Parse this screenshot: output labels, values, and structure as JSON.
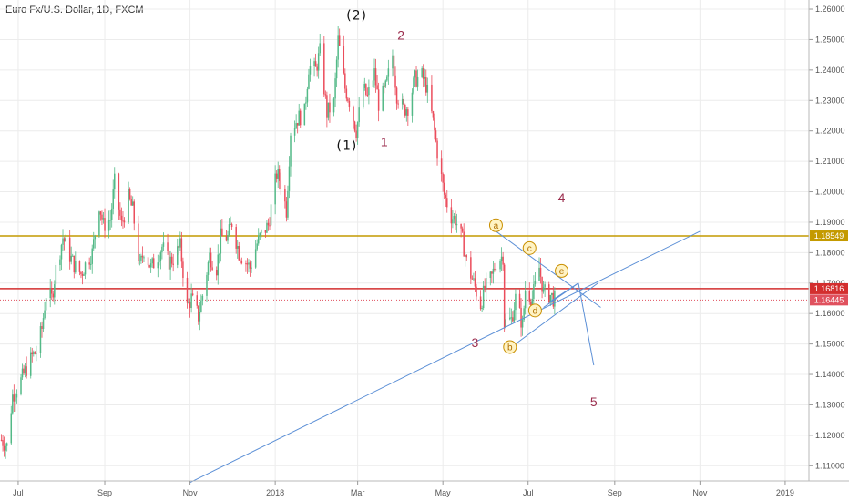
{
  "title": "Euro Fx/U.S. Dollar, 1D, FXCM",
  "colors": {
    "up": "#53b987",
    "down": "#eb4d5c",
    "hline_gold": "#c49a00",
    "hline_red": "#d32f2f",
    "last_dotted": "#e0515e",
    "trend_blue": "#5b8fd6",
    "wave_red": "#9c2f4f",
    "circle_fill": "#fff3c4",
    "circle_stroke": "#c98f00",
    "grid": "#ececec",
    "axis_text": "#555555"
  },
  "chart_data": {
    "type": "candlestick",
    "symbol": "Euro Fx/U.S. Dollar",
    "interval": "1D",
    "source": "FXCM",
    "ylim": [
      1.105,
      1.263
    ],
    "y_ticks": [
      "1.11000",
      "1.12000",
      "1.13000",
      "1.14000",
      "1.15000",
      "1.16000",
      "1.17000",
      "1.18000",
      "1.19000",
      "1.20000",
      "1.21000",
      "1.22000",
      "1.23000",
      "1.24000",
      "1.25000",
      "1.26000"
    ],
    "x_range": [
      "2017-06-18",
      "2019-01-18"
    ],
    "x_ticks": [
      {
        "label": "Jul",
        "date": "2017-07-01"
      },
      {
        "label": "Sep",
        "date": "2017-09-01"
      },
      {
        "label": "Nov",
        "date": "2017-11-01"
      },
      {
        "label": "2018",
        "date": "2018-01-01"
      },
      {
        "label": "Mar",
        "date": "2018-03-01"
      },
      {
        "label": "May",
        "date": "2018-05-01"
      },
      {
        "label": "Jul",
        "date": "2018-07-01"
      },
      {
        "label": "Sep",
        "date": "2018-09-01"
      },
      {
        "label": "Nov",
        "date": "2018-11-01"
      },
      {
        "label": "2019",
        "date": "2019-01-01"
      }
    ],
    "closes": [
      [
        "2017-06-19",
        1.1185
      ],
      [
        "2017-06-23",
        1.1165
      ],
      [
        "2017-06-27",
        1.133
      ],
      [
        "2017-07-03",
        1.138
      ],
      [
        "2017-07-07",
        1.142
      ],
      [
        "2017-07-11",
        1.146
      ],
      [
        "2017-07-14",
        1.1475
      ],
      [
        "2017-07-18",
        1.155
      ],
      [
        "2017-07-21",
        1.1665
      ],
      [
        "2017-07-25",
        1.165
      ],
      [
        "2017-07-28",
        1.1745
      ],
      [
        "2017-08-02",
        1.185
      ],
      [
        "2017-08-07",
        1.179
      ],
      [
        "2017-08-10",
        1.176
      ],
      [
        "2017-08-15",
        1.173
      ],
      [
        "2017-08-18",
        1.176
      ],
      [
        "2017-08-23",
        1.18
      ],
      [
        "2017-08-28",
        1.196
      ],
      [
        "2017-08-31",
        1.189
      ],
      [
        "2017-09-05",
        1.191
      ],
      [
        "2017-09-08",
        1.203
      ],
      [
        "2017-09-13",
        1.189
      ],
      [
        "2017-09-18",
        1.198
      ],
      [
        "2017-09-21",
        1.194
      ],
      [
        "2017-09-26",
        1.175
      ],
      [
        "2017-09-29",
        1.181
      ],
      [
        "2017-10-04",
        1.175
      ],
      [
        "2017-10-09",
        1.179
      ],
      [
        "2017-10-12",
        1.182
      ],
      [
        "2017-10-17",
        1.177
      ],
      [
        "2017-10-20",
        1.178
      ],
      [
        "2017-10-25",
        1.182
      ],
      [
        "2017-10-30",
        1.162
      ],
      [
        "2017-11-02",
        1.165
      ],
      [
        "2017-11-07",
        1.159
      ],
      [
        "2017-11-10",
        1.166
      ],
      [
        "2017-11-15",
        1.179
      ],
      [
        "2017-11-20",
        1.175
      ],
      [
        "2017-11-23",
        1.185
      ],
      [
        "2017-11-28",
        1.185
      ],
      [
        "2017-12-01",
        1.19
      ],
      [
        "2017-12-06",
        1.18
      ],
      [
        "2017-12-11",
        1.177
      ],
      [
        "2017-12-14",
        1.175
      ],
      [
        "2017-12-19",
        1.183
      ],
      [
        "2017-12-22",
        1.186
      ],
      [
        "2017-12-27",
        1.189
      ],
      [
        "2018-01-02",
        1.206
      ],
      [
        "2018-01-05",
        1.203
      ],
      [
        "2018-01-09",
        1.194
      ],
      [
        "2018-01-12",
        1.22
      ],
      [
        "2018-01-17",
        1.224
      ],
      [
        "2018-01-22",
        1.226
      ],
      [
        "2018-01-25",
        1.241
      ],
      [
        "2018-01-30",
        1.24
      ],
      [
        "2018-02-02",
        1.246
      ],
      [
        "2018-02-07",
        1.226
      ],
      [
        "2018-02-12",
        1.229
      ],
      [
        "2018-02-15",
        1.25
      ],
      [
        "2018-02-20",
        1.234
      ],
      [
        "2018-02-23",
        1.23
      ],
      [
        "2018-02-28",
        1.22
      ],
      [
        "2018-03-05",
        1.234
      ],
      [
        "2018-03-08",
        1.231
      ],
      [
        "2018-03-13",
        1.239
      ],
      [
        "2018-03-16",
        1.229
      ],
      [
        "2018-03-21",
        1.234
      ],
      [
        "2018-03-26",
        1.245
      ],
      [
        "2018-03-29",
        1.232
      ],
      [
        "2018-04-03",
        1.227
      ],
      [
        "2018-04-06",
        1.228
      ],
      [
        "2018-04-11",
        1.237
      ],
      [
        "2018-04-16",
        1.238
      ],
      [
        "2018-04-19",
        1.235
      ],
      [
        "2018-04-24",
        1.223
      ],
      [
        "2018-04-27",
        1.213
      ],
      [
        "2018-05-02",
        1.199
      ],
      [
        "2018-05-07",
        1.192
      ],
      [
        "2018-05-10",
        1.191
      ],
      [
        "2018-05-15",
        1.184
      ],
      [
        "2018-05-18",
        1.177
      ],
      [
        "2018-05-23",
        1.17
      ],
      [
        "2018-05-28",
        1.163
      ],
      [
        "2018-05-31",
        1.168
      ],
      [
        "2018-06-05",
        1.172
      ],
      [
        "2018-06-08",
        1.177
      ],
      [
        "2018-06-13",
        1.179
      ],
      [
        "2018-06-14",
        1.157
      ],
      [
        "2018-06-19",
        1.158
      ],
      [
        "2018-06-22",
        1.165
      ],
      [
        "2018-06-27",
        1.156
      ],
      [
        "2018-06-29",
        1.168
      ],
      [
        "2018-07-04",
        1.165
      ],
      [
        "2018-07-09",
        1.175
      ],
      [
        "2018-07-12",
        1.167
      ],
      [
        "2018-07-17",
        1.166
      ],
      [
        "2018-07-20",
        1.1645
      ]
    ],
    "horizontal_lines": [
      {
        "price": 1.18549,
        "label": "1.18549",
        "style": "solid",
        "color_key": "hline_gold"
      },
      {
        "price": 1.16816,
        "label": "1.16816",
        "style": "solid",
        "color_key": "hline_red"
      },
      {
        "price": 1.16445,
        "label": "1.16445",
        "style": "dotted",
        "color_key": "last_dotted"
      }
    ],
    "trend_lines": [
      {
        "from": [
          "2017-11-01",
          1.1045
        ],
        "to": [
          "2018-11-01",
          1.187
        ]
      },
      {
        "from": [
          "2018-06-08",
          1.187
        ],
        "to": [
          "2018-08-22",
          1.162
        ]
      },
      {
        "from": [
          "2018-06-22",
          1.15
        ],
        "to": [
          "2018-08-20",
          1.17
        ]
      },
      {
        "from": [
          "2018-07-12",
          1.162
        ],
        "to": [
          "2018-08-06",
          1.17
        ]
      },
      {
        "from": [
          "2018-07-17",
          1.164
        ],
        "to": [
          "2018-08-06",
          1.17
        ]
      },
      {
        "from": [
          "2018-08-06",
          1.17
        ],
        "to": [
          "2018-08-17",
          1.143
        ]
      }
    ],
    "annotations": [
      {
        "text": "(2)",
        "date": "2018-02-28",
        "price": 1.2565,
        "style": "mono"
      },
      {
        "text": "2",
        "date": "2018-04-01",
        "price": 1.25,
        "style": "wave"
      },
      {
        "text": "(1)",
        "date": "2018-02-21",
        "price": 1.2138,
        "style": "mono"
      },
      {
        "text": "1",
        "date": "2018-03-20",
        "price": 1.215,
        "style": "wave"
      },
      {
        "text": "4",
        "date": "2018-07-25",
        "price": 1.1965,
        "style": "wave"
      },
      {
        "text": "3",
        "date": "2018-05-24",
        "price": 1.149,
        "style": "wave"
      },
      {
        "text": "5",
        "date": "2018-08-17",
        "price": 1.1295,
        "style": "wave"
      }
    ],
    "circled_labels": [
      {
        "text": "a",
        "date": "2018-06-08",
        "price": 1.189
      },
      {
        "text": "c",
        "date": "2018-07-02",
        "price": 1.1815
      },
      {
        "text": "e",
        "date": "2018-07-25",
        "price": 1.174
      },
      {
        "text": "d",
        "date": "2018-07-06",
        "price": 1.161
      },
      {
        "text": "b",
        "date": "2018-06-18",
        "price": 1.149
      }
    ]
  }
}
